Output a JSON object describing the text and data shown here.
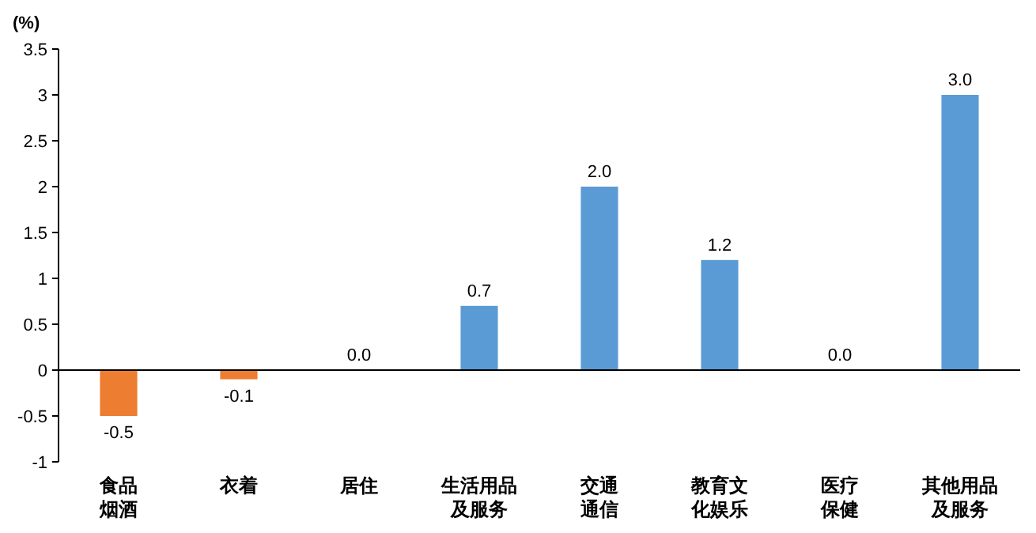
{
  "chart_data": {
    "type": "bar",
    "ylabel": "(%)",
    "categories": [
      "食品烟酒",
      "衣着",
      "居住",
      "生活用品及服务",
      "交通通信",
      "教育文化娱乐",
      "医疗保健",
      "其他用品及服务"
    ],
    "values": [
      -0.5,
      -0.1,
      0.0,
      0.7,
      2.0,
      1.2,
      0.0,
      3.0
    ],
    "colors": [
      "#ed7d31",
      "#ed7d31",
      "#5b9bd5",
      "#5b9bd5",
      "#5b9bd5",
      "#5b9bd5",
      "#5b9bd5",
      "#5b9bd5"
    ],
    "value_labels": [
      "-0.5",
      "-0.1",
      "0.0",
      "0.7",
      "2.0",
      "1.2",
      "0.0",
      "3.0"
    ],
    "ylim": [
      -1,
      3.5
    ],
    "yticks": [
      {
        "value": -1,
        "label": "-1"
      },
      {
        "value": -0.5,
        "label": "-0.5"
      },
      0,
      0.5,
      1,
      1.5,
      2,
      2.5,
      3,
      3.5
    ]
  }
}
